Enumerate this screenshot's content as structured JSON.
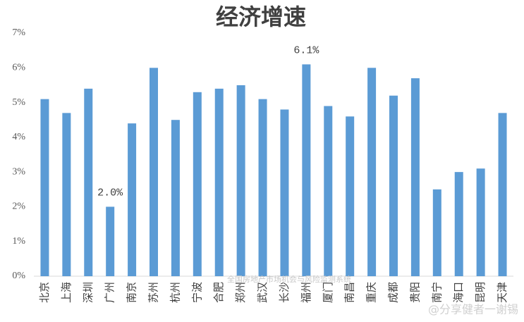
{
  "chart_data": {
    "type": "bar",
    "title": "经济增速",
    "categories": [
      "北京",
      "上海",
      "深圳",
      "广州",
      "南京",
      "苏州",
      "杭州",
      "宁波",
      "合肥",
      "郑州",
      "武汉",
      "长沙",
      "福州",
      "厦门",
      "南昌",
      "重庆",
      "成都",
      "贵阳",
      "南宁",
      "海口",
      "昆明",
      "天津"
    ],
    "values": [
      5.1,
      4.7,
      5.4,
      2.0,
      4.4,
      6.0,
      4.5,
      5.3,
      5.4,
      5.5,
      5.1,
      4.8,
      6.1,
      4.9,
      4.6,
      6.0,
      5.2,
      5.7,
      2.5,
      3.0,
      3.1,
      4.7
    ],
    "value_labels": [
      null,
      null,
      null,
      "2.0%",
      null,
      null,
      null,
      null,
      null,
      null,
      null,
      null,
      "6.1%",
      null,
      null,
      null,
      null,
      null,
      null,
      null,
      null,
      null
    ],
    "color": "#5b9bd5",
    "ylim": [
      0,
      7
    ],
    "yticks": [
      {
        "value": 0,
        "label": "0%"
      },
      {
        "value": 1,
        "label": "1%"
      },
      {
        "value": 2,
        "label": "2%"
      },
      {
        "value": 3,
        "label": "3%"
      },
      {
        "value": 4,
        "label": "4%"
      },
      {
        "value": 5,
        "label": "5%"
      },
      {
        "value": 6,
        "label": "6%"
      },
      {
        "value": 7,
        "label": "7%"
      }
    ],
    "grid": false,
    "watermarks": [
      "全国房地产市场机会与风险监测系统",
      "@分享健者一谢锡"
    ]
  }
}
